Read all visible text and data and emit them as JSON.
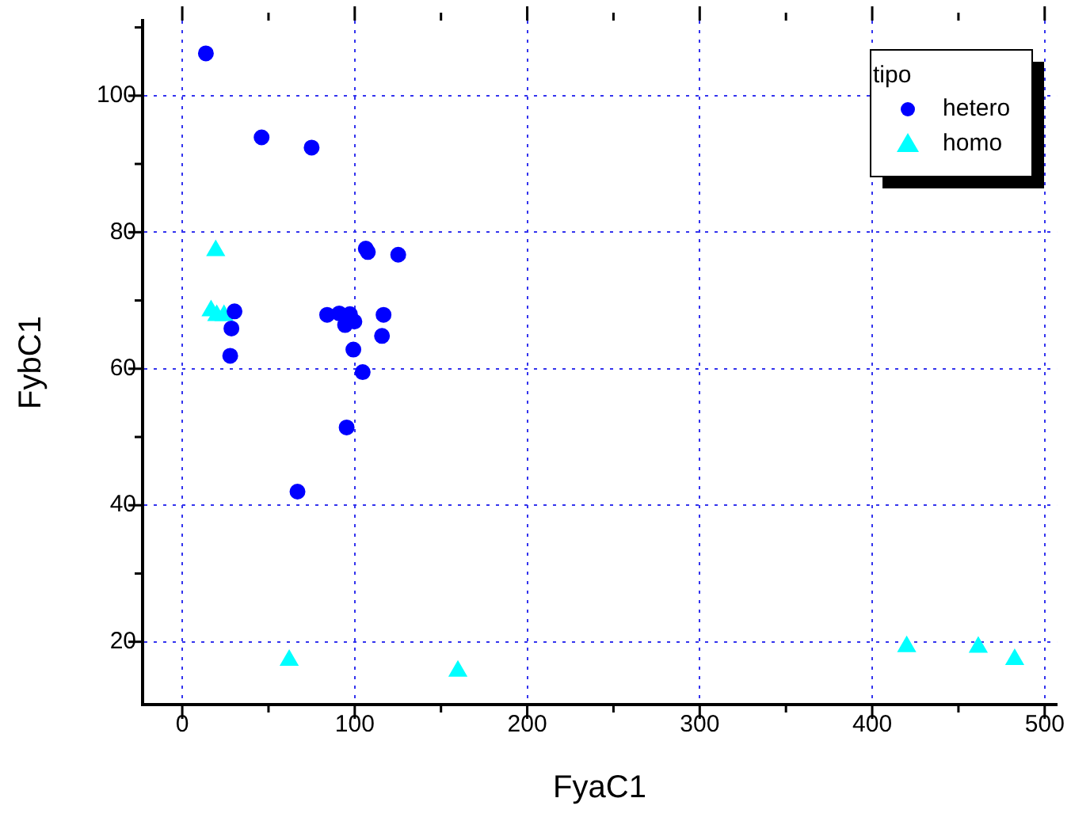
{
  "chart_data": {
    "type": "scatter",
    "xlabel": "FyaC1",
    "ylabel": "FybC1",
    "legend_title": "tipo",
    "legend": "top right",
    "grid": true,
    "xlim": [
      -23,
      507
    ],
    "ylim": [
      10.8,
      111
    ],
    "xticks": [
      0,
      {
        "value": 50,
        "label": null
      },
      100,
      {
        "value": 150,
        "label": null
      },
      200,
      {
        "value": 250,
        "label": null
      },
      300,
      {
        "value": 350,
        "label": null
      },
      400,
      {
        "value": 450,
        "label": null
      },
      500
    ],
    "yticks": [
      20,
      {
        "value": 30,
        "label": null
      },
      40,
      {
        "value": 50,
        "label": null
      },
      60,
      {
        "value": 70,
        "label": null
      },
      80,
      {
        "value": 90,
        "label": null
      },
      100,
      {
        "value": 110,
        "label": null
      }
    ],
    "series": [
      {
        "name": "hetero",
        "color": "#0000ff",
        "marker": "circle",
        "x": [
          13.7,
          46,
          75,
          106.4,
          107.6,
          125.2,
          30.3,
          28.5,
          27.8,
          84,
          91,
          94.4,
          97.2,
          99.8,
          116.7,
          115.8,
          99.2,
          104.6,
          95.3,
          66.8
        ],
        "values": [
          106.2,
          93.9,
          92.4,
          77.6,
          77.1,
          76.7,
          68.4,
          65.9,
          61.9,
          67.9,
          68.1,
          66.4,
          68,
          66.9,
          67.9,
          64.8,
          62.8,
          59.5,
          51.4,
          42
        ]
      },
      {
        "name": "homo",
        "color": "#00ffff",
        "marker": "triangle",
        "x": [
          19.4,
          16.7,
          20,
          24.2,
          62,
          159.8,
          420,
          461.5,
          482.6
        ],
        "values": [
          77.3,
          68.5,
          67.8,
          67.8,
          17.3,
          15.7,
          19.3,
          19.2,
          17.4
        ]
      }
    ]
  }
}
